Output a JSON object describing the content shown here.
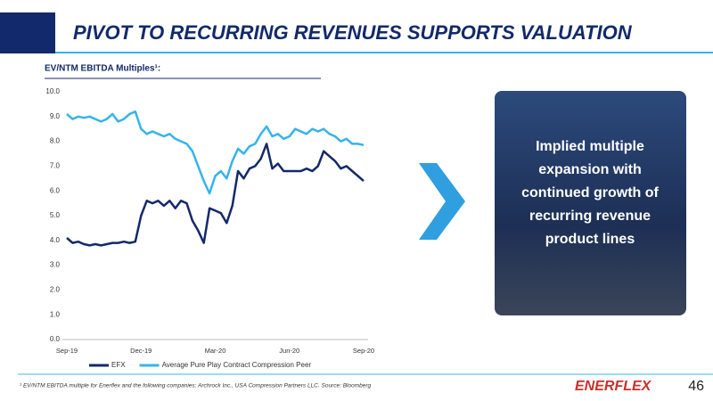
{
  "slide": {
    "title": "PIVOT TO RECURRING REVENUES SUPPORTS VALUATION",
    "callout": [
      "Implied multiple",
      "expansion with",
      "continued growth of",
      "recurring revenue",
      "product lines"
    ],
    "footnote": "¹ EV/NTM EBITDA multiple for Enerflex and the following companies: Archrock Inc., USA Compression Partners LLC. Source: Bloomberg",
    "logo": "ENERFLEX",
    "page": "46"
  },
  "chart_data": {
    "type": "line",
    "title": "EV/NTM EBITDA Multiples¹:",
    "categories": [
      "Sep-19",
      null,
      null,
      null,
      null,
      null,
      null,
      null,
      null,
      null,
      null,
      null,
      null,
      "Dec-19",
      null,
      null,
      null,
      null,
      null,
      null,
      null,
      null,
      null,
      null,
      null,
      null,
      "Mar-20",
      null,
      null,
      null,
      null,
      null,
      null,
      null,
      null,
      null,
      null,
      null,
      null,
      "Jun-20",
      null,
      null,
      null,
      null,
      null,
      null,
      null,
      null,
      null,
      null,
      null,
      null,
      "Sep-20"
    ],
    "series": [
      {
        "name": "EFX",
        "color": "#12296b",
        "values": [
          4.1,
          3.9,
          3.95,
          3.85,
          3.8,
          3.85,
          3.8,
          3.85,
          3.9,
          3.9,
          3.95,
          3.9,
          3.95,
          5.0,
          5.6,
          5.5,
          5.6,
          5.4,
          5.6,
          5.3,
          5.6,
          5.5,
          4.8,
          4.4,
          3.9,
          5.3,
          5.2,
          5.1,
          4.7,
          5.4,
          6.8,
          6.5,
          6.9,
          7.0,
          7.3,
          7.9,
          6.9,
          7.1,
          6.8,
          6.8,
          6.8,
          6.8,
          6.9,
          6.8,
          7.0,
          7.6,
          7.4,
          7.2,
          6.9,
          7.0,
          6.8,
          6.6,
          6.4
        ]
      },
      {
        "name": "Average Pure Play Contract Compression Peer",
        "color": "#35b4ea",
        "values": [
          9.1,
          8.9,
          9.0,
          8.95,
          9.0,
          8.9,
          8.8,
          8.9,
          9.1,
          8.8,
          8.9,
          9.1,
          9.2,
          8.5,
          8.3,
          8.4,
          8.3,
          8.2,
          8.3,
          8.1,
          8.0,
          7.9,
          7.6,
          7.0,
          6.4,
          5.9,
          6.6,
          6.8,
          6.5,
          7.2,
          7.7,
          7.5,
          7.8,
          7.9,
          8.3,
          8.6,
          8.2,
          8.3,
          8.1,
          8.2,
          8.5,
          8.4,
          8.3,
          8.5,
          8.4,
          8.5,
          8.3,
          8.2,
          8.0,
          8.1,
          7.9,
          7.9,
          7.85
        ]
      }
    ],
    "ylim": [
      0,
      10
    ],
    "yticks": [
      {
        "value": 0,
        "label": "0.0"
      },
      {
        "value": 1,
        "label": "1.0"
      },
      {
        "value": 2,
        "label": "2.0"
      },
      {
        "value": 3,
        "label": "3.0"
      },
      {
        "value": 4,
        "label": "4.0"
      },
      {
        "value": 5,
        "label": "5.0"
      },
      {
        "value": 6,
        "label": "6.0"
      },
      {
        "value": 7,
        "label": "7.0"
      },
      {
        "value": 8,
        "label": "8.0"
      },
      {
        "value": 9,
        "label": "9.0"
      },
      {
        "value": 10,
        "label": "10.0"
      }
    ],
    "legend": "bottom"
  }
}
